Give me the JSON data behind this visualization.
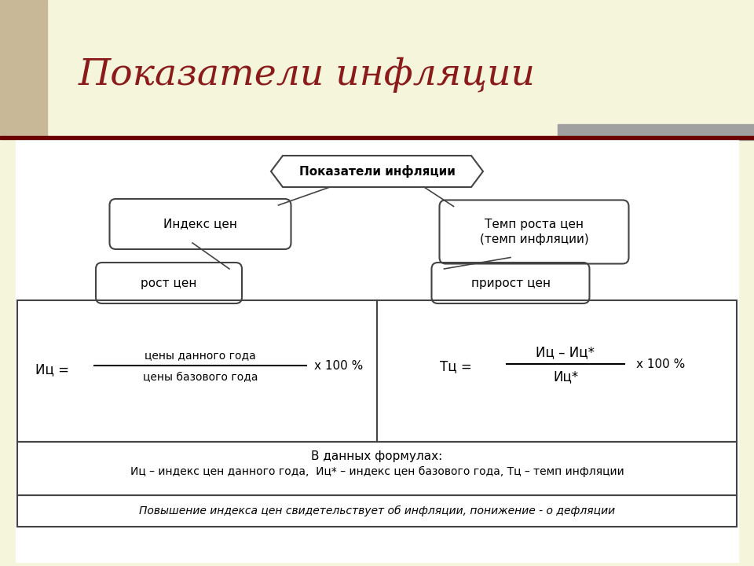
{
  "title": "Показатели инфляции",
  "title_color": "#8B1A1A",
  "title_fontsize": 34,
  "bg_color": "#F5F5DC",
  "left_accent_color": "#C8B898",
  "right_bar_color": "#A0A0A0",
  "header_bar_color": "#6B0000",
  "diagram_bg": "#FFFFFF",
  "box_border_color": "#444444",
  "main_node_text": "Показатели инфляции",
  "left_node_text": "Индекс цен",
  "right_node_text": "Темп роста цен\n(темп инфляции)",
  "left_leaf_text": "рост цен",
  "right_leaf_text": "прирост цен",
  "formula_left_var": "Иц =",
  "formula_left_num": "цены данного года",
  "formula_left_denom": "цены базового года",
  "formula_left_mult": "х 100 %",
  "formula_right_var": "Тц =",
  "formula_right_num": "Иц – Иц*",
  "formula_right_denom": "Иц*",
  "formula_right_mult": "х 100 %",
  "note_line1": "В данных формулах:",
  "note_line2": "Иц – индекс цен данного года,  Иц* – индекс цен базового года, Тц – темп инфляции",
  "italic_note": "Повышение индекса цен свидетельствует об инфляции, понижение - о дефляции"
}
